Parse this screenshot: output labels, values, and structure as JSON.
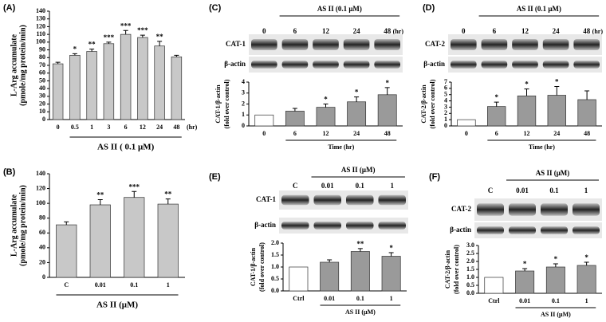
{
  "chart_data": [
    {
      "type": "bar",
      "panel_label": "(A)",
      "y_label": [
        "L-Arg accumulate",
        "(pmole/mg protein/min)"
      ],
      "x_label": "AS II ( 0.1 μM)",
      "x_unit": "(hr)",
      "categories": [
        "0",
        "0.5",
        "1",
        "3",
        "6",
        "12",
        "24",
        "48"
      ],
      "values": [
        72,
        83,
        88,
        98,
        110,
        106,
        95,
        81
      ],
      "errors": [
        2,
        2,
        3,
        2,
        5,
        3,
        6,
        2
      ],
      "annotations": [
        null,
        "*",
        "**",
        "***",
        "***",
        "***",
        "**",
        null
      ],
      "ylim": [
        0,
        140
      ],
      "yticks": [
        0,
        10,
        20,
        30,
        40,
        50,
        60,
        70,
        80,
        90,
        100,
        110,
        120,
        130,
        140
      ],
      "colors": [
        "#c8c8c8",
        "#c8c8c8",
        "#c8c8c8",
        "#c8c8c8",
        "#c8c8c8",
        "#c8c8c8",
        "#c8c8c8",
        "#c8c8c8"
      ]
    },
    {
      "type": "bar",
      "panel_label": "(B)",
      "y_label": [
        "L-Arg accumulate",
        "(pmole/mg protein/min)"
      ],
      "x_label": "AS II  (μM)",
      "categories": [
        "C",
        "0.01",
        "0.1",
        "1"
      ],
      "values": [
        71,
        98,
        108,
        99
      ],
      "errors": [
        4,
        7,
        8,
        7
      ],
      "annotations": [
        null,
        "**",
        "***",
        "**"
      ],
      "ylim": [
        0,
        140
      ],
      "yticks": [
        0,
        20,
        40,
        60,
        80,
        100,
        120,
        140
      ],
      "colors": [
        "#c8c8c8",
        "#c8c8c8",
        "#c8c8c8",
        "#c8c8c8"
      ]
    },
    {
      "type": "bar",
      "panel_label": "(C)",
      "y_label": [
        "CAT-1/β-actin",
        "(fold over control)"
      ],
      "x_label": "Time    (hr)",
      "categories": [
        "0",
        "6",
        "12",
        "24",
        "48"
      ],
      "values": [
        1.0,
        1.35,
        1.7,
        2.2,
        2.85
      ],
      "errors": [
        null,
        0.25,
        0.3,
        0.45,
        0.65
      ],
      "annotations": [
        null,
        null,
        "*",
        "*",
        "*"
      ],
      "ylim": [
        0,
        4
      ],
      "yticks": [
        0,
        1,
        2,
        3,
        4
      ],
      "colors": [
        "#ffffff",
        "#9a9a9a",
        "#9a9a9a",
        "#9a9a9a",
        "#9a9a9a"
      ],
      "blot": {
        "header": "AS II  (0.1 μM)",
        "lanes": [
          "0",
          "6",
          "12",
          "24",
          "48"
        ],
        "lane_unit": "(hr)",
        "rows": [
          "CAT-1",
          "β-actin"
        ]
      }
    },
    {
      "type": "bar",
      "panel_label": "(D)",
      "y_label": [
        "CAT-2/β-actin",
        "(fold over control)"
      ],
      "x_label": "Time    (hr)",
      "categories": [
        "0",
        "6",
        "12",
        "24",
        "48"
      ],
      "values": [
        1.0,
        3.1,
        4.8,
        4.9,
        4.2
      ],
      "errors": [
        null,
        0.7,
        1.1,
        1.4,
        1.4
      ],
      "annotations": [
        null,
        "*",
        "*",
        "*",
        null
      ],
      "ylim": [
        0,
        7
      ],
      "yticks": [
        0,
        1,
        2,
        3,
        4,
        5,
        6,
        7
      ],
      "colors": [
        "#ffffff",
        "#9a9a9a",
        "#9a9a9a",
        "#9a9a9a",
        "#9a9a9a"
      ],
      "blot": {
        "header": "AS II  (0.1 μM)",
        "lanes": [
          "0",
          "6",
          "12",
          "24",
          "48"
        ],
        "lane_unit": "(hr)",
        "rows": [
          "CAT-2",
          "β-actin"
        ]
      }
    },
    {
      "type": "bar",
      "panel_label": "(E)",
      "y_label": [
        "CAT-1/β-actin",
        "(fold over control)"
      ],
      "x_label": "AS II (μM)",
      "categories": [
        "Ctrl",
        "0.01",
        "0.1",
        "1"
      ],
      "values": [
        1.0,
        1.2,
        1.65,
        1.45
      ],
      "errors": [
        null,
        0.1,
        0.12,
        0.15
      ],
      "annotations": [
        null,
        null,
        "**",
        "*"
      ],
      "ylim": [
        0,
        2
      ],
      "yticks": [
        {
          "value": 0,
          "label": "0.0"
        },
        0.5,
        {
          "value": 1,
          "label": "1.0"
        },
        1.5,
        {
          "value": 2,
          "label": "2.0"
        }
      ],
      "colors": [
        "#ffffff",
        "#9a9a9a",
        "#9a9a9a",
        "#9a9a9a"
      ],
      "blot": {
        "header": "AS II (μM)",
        "lanes": [
          "C",
          "0.01",
          "0.1",
          "1"
        ],
        "rows": [
          "CAT-1",
          "β-actin"
        ]
      }
    },
    {
      "type": "bar",
      "panel_label": "(F)",
      "y_label": [
        "CAT-2/β-actin",
        "(fold over control)"
      ],
      "x_label": "AS II (μM)",
      "categories": [
        "Ctrl",
        "0.01",
        "0.1",
        "1"
      ],
      "values": [
        1.0,
        1.4,
        1.65,
        1.75
      ],
      "errors": [
        null,
        0.15,
        0.2,
        0.2
      ],
      "annotations": [
        null,
        "*",
        "*",
        "*"
      ],
      "ylim": [
        0,
        3
      ],
      "yticks": [
        {
          "value": 0,
          "label": "0.0"
        },
        0.5,
        {
          "value": 1,
          "label": "1.0"
        },
        1.5,
        {
          "value": 2,
          "label": "2.0"
        },
        2.5,
        {
          "value": 3,
          "label": "3.0"
        }
      ],
      "colors": [
        "#ffffff",
        "#9a9a9a",
        "#9a9a9a",
        "#9a9a9a"
      ],
      "blot": {
        "header": "AS II (μM)",
        "lanes": [
          "C",
          "0.01",
          "0.1",
          "1"
        ],
        "rows": [
          "CAT-2",
          "β-actin"
        ]
      }
    }
  ]
}
